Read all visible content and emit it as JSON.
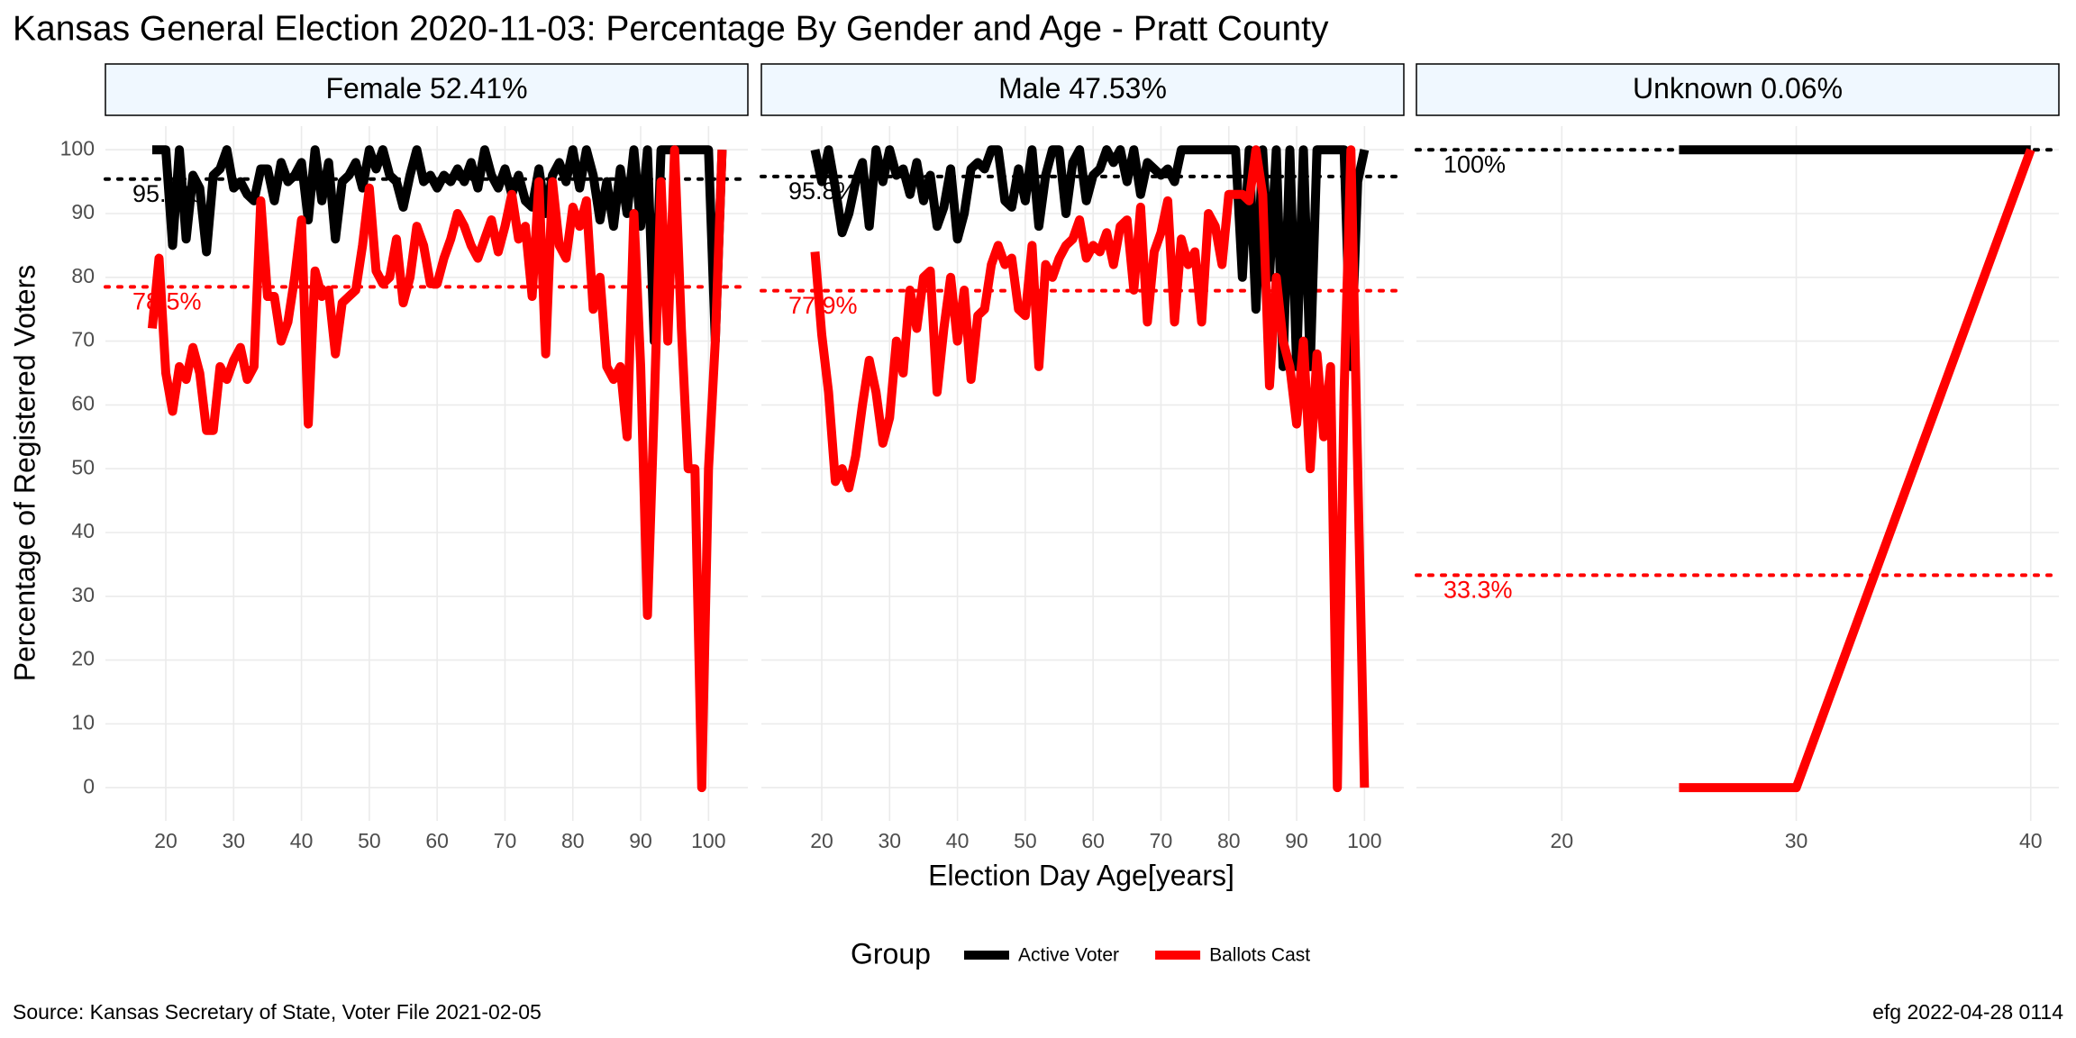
{
  "title": "Kansas General Election 2020-11-03:  Percentage By Gender and Age - Pratt County",
  "x_label": "Election Day Age[years]",
  "y_label": "Percentage of Registered Voters",
  "legend_title": "Group",
  "caption_left": "Source:  Kansas Secretary of State, Voter File  2021-02-05",
  "caption_right": "efg 2022-04-28 0114",
  "chart_data": [
    {
      "type": "line",
      "strip": "Female 52.41%",
      "x": [
        18,
        19,
        20,
        21,
        22,
        23,
        24,
        25,
        26,
        27,
        28,
        29,
        30,
        31,
        32,
        33,
        34,
        35,
        36,
        37,
        38,
        39,
        40,
        41,
        42,
        43,
        44,
        45,
        46,
        47,
        48,
        49,
        50,
        51,
        52,
        53,
        54,
        55,
        56,
        57,
        58,
        59,
        60,
        61,
        62,
        63,
        64,
        65,
        66,
        67,
        68,
        69,
        70,
        71,
        72,
        73,
        74,
        75,
        76,
        77,
        78,
        79,
        80,
        81,
        82,
        83,
        84,
        85,
        86,
        87,
        88,
        89,
        90,
        91,
        92,
        93,
        94,
        95,
        96,
        97,
        98,
        99,
        100,
        101,
        102
      ],
      "xlim": [
        11.1,
        105.8
      ],
      "xticks": [
        20,
        30,
        40,
        50,
        60,
        70,
        80,
        90,
        100
      ],
      "ylim": [
        -5.2,
        103.7
      ],
      "yticks": [
        0,
        10,
        20,
        30,
        40,
        50,
        60,
        70,
        80,
        90,
        100
      ],
      "grid": true,
      "series": [
        {
          "name": "Active Voter",
          "color": "#000000",
          "values": [
            100,
            100,
            100,
            85,
            100,
            86,
            96,
            94,
            84,
            96,
            97,
            100,
            94,
            95,
            93,
            92,
            97,
            97,
            92,
            98,
            95,
            96,
            98,
            89,
            100,
            92,
            98,
            86,
            95,
            96,
            98,
            94,
            100,
            97,
            100,
            96,
            95,
            91,
            96,
            100,
            95,
            96,
            94,
            96,
            95,
            97,
            95,
            98,
            94,
            100,
            96,
            94,
            97,
            93,
            96,
            92,
            91,
            97,
            90,
            96,
            98,
            95,
            100,
            94,
            100,
            96,
            89,
            95,
            88,
            97,
            90,
            100,
            88,
            100,
            70,
            100,
            100,
            100,
            100,
            100,
            100,
            100,
            100,
            70,
            100
          ]
        },
        {
          "name": "Ballots Cast",
          "color": "#ff0000",
          "values": [
            72,
            83,
            65,
            59,
            66,
            64,
            69,
            65,
            56,
            56,
            66,
            64,
            67,
            69,
            64,
            66,
            92,
            77,
            77,
            70,
            73,
            80,
            89,
            57,
            81,
            77,
            78,
            68,
            76,
            77,
            78,
            85,
            94,
            81,
            79,
            80,
            86,
            76,
            80,
            88,
            85,
            79,
            79,
            83,
            86,
            90,
            88,
            85,
            83,
            86,
            89,
            84,
            88,
            93,
            86,
            88,
            77,
            95,
            68,
            95,
            85,
            83,
            91,
            88,
            92,
            75,
            80,
            66,
            64,
            66,
            55,
            90,
            66,
            27,
            60,
            95,
            70,
            100,
            72,
            50,
            50,
            0,
            50,
            70,
            100
          ]
        }
      ],
      "reference_lines": [
        {
          "value": 95.4,
          "label": "95.4%",
          "color": "#000000"
        },
        {
          "value": 78.5,
          "label": "78.5%",
          "color": "#ff0000"
        }
      ]
    },
    {
      "type": "line",
      "strip": "Male 47.53%",
      "x": [
        19,
        20,
        21,
        22,
        23,
        24,
        25,
        26,
        27,
        28,
        29,
        30,
        31,
        32,
        33,
        34,
        35,
        36,
        37,
        38,
        39,
        40,
        41,
        42,
        43,
        44,
        45,
        46,
        47,
        48,
        49,
        50,
        51,
        52,
        53,
        54,
        55,
        56,
        57,
        58,
        59,
        60,
        61,
        62,
        63,
        64,
        65,
        66,
        67,
        68,
        69,
        70,
        71,
        72,
        73,
        74,
        75,
        76,
        77,
        78,
        79,
        80,
        81,
        82,
        83,
        84,
        85,
        86,
        87,
        88,
        89,
        90,
        91,
        92,
        93,
        94,
        95,
        96,
        97,
        98,
        99,
        100
      ],
      "xlim": [
        11.1,
        105.8
      ],
      "xticks": [
        20,
        30,
        40,
        50,
        60,
        70,
        80,
        90,
        100
      ],
      "ylim": [
        -5.2,
        103.7
      ],
      "yticks": [
        0,
        10,
        20,
        30,
        40,
        50,
        60,
        70,
        80,
        90,
        100
      ],
      "grid": true,
      "series": [
        {
          "name": "Active Voter",
          "color": "#000000",
          "values": [
            100,
            95,
            100,
            94,
            87,
            90,
            95,
            98,
            88,
            100,
            95,
            100,
            96,
            97,
            93,
            98,
            92,
            96,
            88,
            91,
            97,
            86,
            90,
            97,
            98,
            97,
            100,
            100,
            92,
            91,
            97,
            92,
            100,
            88,
            96,
            100,
            100,
            90,
            98,
            100,
            92,
            96,
            97,
            100,
            98,
            100,
            95,
            100,
            93,
            98,
            97,
            96,
            97,
            95,
            100,
            100,
            100,
            100,
            100,
            100,
            100,
            100,
            100,
            80,
            100,
            75,
            100,
            80,
            100,
            66,
            100,
            66,
            100,
            66,
            100,
            100,
            100,
            100,
            100,
            66,
            95,
            100
          ]
        },
        {
          "name": "Ballots Cast",
          "color": "#ff0000",
          "values": [
            84,
            71,
            62,
            48,
            50,
            47,
            52,
            60,
            67,
            62,
            54,
            58,
            70,
            65,
            78,
            72,
            80,
            81,
            62,
            72,
            80,
            70,
            78,
            64,
            74,
            75,
            82,
            85,
            82,
            83,
            75,
            74,
            85,
            66,
            82,
            80,
            83,
            85,
            86,
            89,
            83,
            85,
            84,
            87,
            82,
            88,
            89,
            78,
            91,
            73,
            84,
            87,
            92,
            73,
            86,
            82,
            84,
            73,
            90,
            88,
            82,
            93,
            93,
            93,
            92,
            100,
            93,
            63,
            80,
            70,
            66,
            57,
            70,
            50,
            68,
            55,
            66,
            0,
            62,
            100,
            50,
            0
          ]
        }
      ],
      "reference_lines": [
        {
          "value": 95.8,
          "label": "95.8%",
          "color": "#000000"
        },
        {
          "value": 77.9,
          "label": "77.9%",
          "color": "#ff0000"
        }
      ]
    },
    {
      "type": "line",
      "strip": "Unknown 0.06%",
      "x": [
        25,
        30,
        40
      ],
      "xlim": [
        13.8,
        41.2
      ],
      "xticks": [
        20,
        30,
        40
      ],
      "ylim": [
        -5.2,
        103.7
      ],
      "yticks": [
        0,
        10,
        20,
        30,
        40,
        50,
        60,
        70,
        80,
        90,
        100
      ],
      "grid": true,
      "series": [
        {
          "name": "Active Voter",
          "color": "#000000",
          "values": [
            100,
            100,
            100
          ]
        },
        {
          "name": "Ballots Cast",
          "color": "#ff0000",
          "values": [
            0,
            0,
            100
          ]
        }
      ],
      "reference_lines": [
        {
          "value": 100,
          "label": "100%",
          "color": "#000000"
        },
        {
          "value": 33.3,
          "label": "33.3%",
          "color": "#ff0000"
        }
      ]
    }
  ]
}
